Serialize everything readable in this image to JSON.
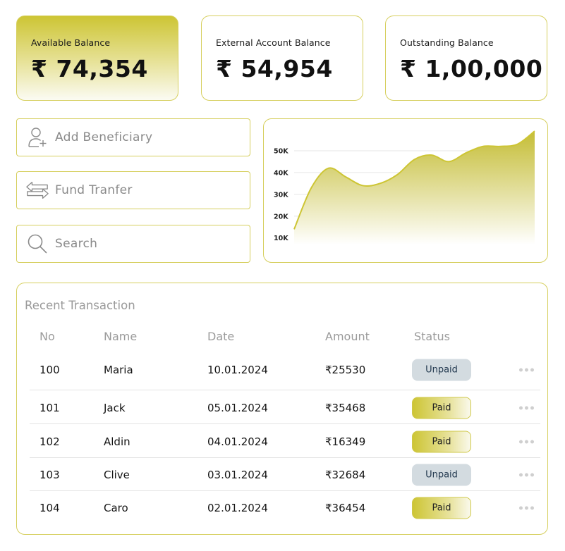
{
  "balances": [
    {
      "label": "Available Balance",
      "value": "₹ 74,354"
    },
    {
      "label": "External Account Balance",
      "value": "₹ 54,954"
    },
    {
      "label": "Outstanding Balance",
      "value": "₹ 1,00,000"
    }
  ],
  "actions": {
    "add_beneficiary": "Add Beneficiary",
    "fund_transfer": "Fund Tranfer",
    "search_placeholder": "Search"
  },
  "icons": {
    "add_beneficiary": "user-plus-icon",
    "fund_transfer": "arrows-exchange-icon",
    "search": "search-icon",
    "row_menu": "more-horizontal-icon"
  },
  "colors": {
    "accent": "#cdc534",
    "border": "#d6cf5e",
    "unpaid_badge": "#d3dbe0",
    "unpaid_text": "#243a50"
  },
  "chart_data": {
    "type": "area",
    "yticks": [
      "10K",
      "20K",
      "30K",
      "40K",
      "50K"
    ],
    "ylim": [
      7000,
      60000
    ],
    "x": [
      0,
      1,
      2,
      3,
      4,
      5,
      6,
      7,
      8,
      9,
      10,
      11,
      12,
      13,
      14
    ],
    "values": [
      14000,
      33000,
      42000,
      38000,
      34000,
      35000,
      39000,
      46000,
      48000,
      45000,
      49000,
      52000,
      52000,
      53000,
      59000
    ],
    "grid": true,
    "legend": "none"
  },
  "transactions": {
    "title": "Recent Transaction",
    "columns": [
      "No",
      "Name",
      "Date",
      "Amount",
      "Status"
    ],
    "rows": [
      {
        "no": "100",
        "name": "Maria",
        "date": "10.01.2024",
        "amount": "₹25530",
        "status": "Unpaid"
      },
      {
        "no": "101",
        "name": "Jack",
        "date": "05.01.2024",
        "amount": "₹35468",
        "status": "Paid"
      },
      {
        "no": "102",
        "name": "Aldin",
        "date": "04.01.2024",
        "amount": "₹16349",
        "status": "Paid"
      },
      {
        "no": "103",
        "name": "Clive",
        "date": "03.01.2024",
        "amount": "₹32684",
        "status": "Unpaid"
      },
      {
        "no": "104",
        "name": "Caro",
        "date": "02.01.2024",
        "amount": "₹36454",
        "status": "Paid"
      }
    ]
  }
}
